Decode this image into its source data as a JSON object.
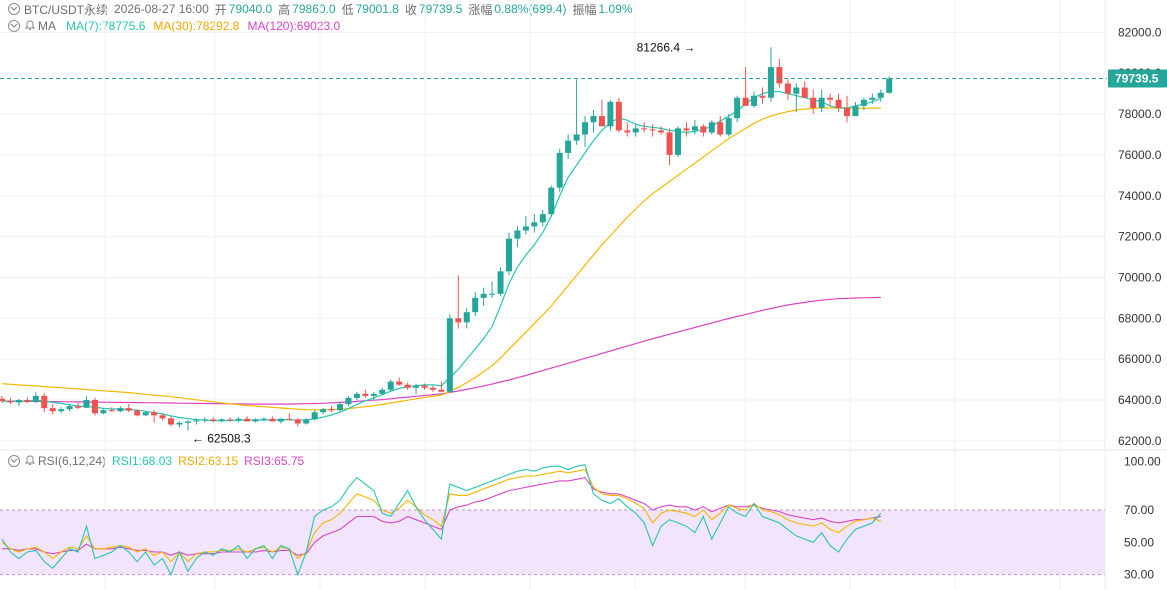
{
  "header": {
    "symbol": "BTC/USDT永续",
    "datetime": "2026-08-27 16:00",
    "open_label": "开",
    "open": "79040.0",
    "high_label": "高",
    "high": "79860.0",
    "low_label": "低",
    "low": "79001.8",
    "close_label": "收",
    "close": "79739.5",
    "change_label": "涨幅",
    "change": "0.88%(699.4)",
    "amp_label": "振幅",
    "amp": "1.09%"
  },
  "ma_header": {
    "label": "MA",
    "ma7": "MA(7):78775.6",
    "ma30": "MA(30):78292.8",
    "ma120": "MA(120):69023.0"
  },
  "rsi_header": {
    "label": "RSI(6,12,24)",
    "rsi1": "RSI1:68.03",
    "rsi2": "RSI2:63.15",
    "rsi3": "RSI3:65.75"
  },
  "colors": {
    "up": "#26a69a",
    "down": "#ef5350",
    "ma7": "#26c6b3",
    "ma30": "#f5b800",
    "ma120": "#d946c4",
    "rsi_band": "#f1e4fb",
    "price_line": "#26a69a"
  },
  "chart_data": {
    "type": "candlestick",
    "price_axis": {
      "ticks": [
        "82000.0",
        "80000.0",
        "78000.0",
        "76000.0",
        "74000.0",
        "72000.0",
        "70000.0",
        "68000.0",
        "66000.0",
        "64000.0",
        "62000.0"
      ],
      "tick_values": [
        82000,
        80000,
        78000,
        76000,
        74000,
        72000,
        70000,
        68000,
        66000,
        64000,
        62000
      ],
      "ylim": [
        61600,
        82900
      ]
    },
    "current_price": {
      "value": 79739.5,
      "label": "79739.5"
    },
    "annotations": [
      {
        "text": "81266.4",
        "value": 81266.4,
        "index": 83,
        "side": "left"
      },
      {
        "text": "62508.3",
        "value": 62508.3,
        "index": 22,
        "side": "right"
      }
    ],
    "candles": [
      [
        64060,
        64200,
        63850,
        63950
      ],
      [
        63950,
        64100,
        63800,
        63880
      ],
      [
        63880,
        64050,
        63700,
        64000
      ],
      [
        64000,
        64120,
        63850,
        63900
      ],
      [
        63900,
        64380,
        63850,
        64200
      ],
      [
        64200,
        64350,
        63400,
        63600
      ],
      [
        63600,
        63800,
        63300,
        63450
      ],
      [
        63450,
        63650,
        63350,
        63550
      ],
      [
        63550,
        63800,
        63450,
        63700
      ],
      [
        63700,
        63850,
        63550,
        63620
      ],
      [
        63620,
        64200,
        63600,
        64000
      ],
      [
        64000,
        64100,
        63250,
        63350
      ],
      [
        63350,
        63550,
        63300,
        63500
      ],
      [
        63500,
        63650,
        63400,
        63450
      ],
      [
        63450,
        63700,
        63400,
        63600
      ],
      [
        63600,
        63800,
        63400,
        63480
      ],
      [
        63480,
        63550,
        63200,
        63250
      ],
      [
        63250,
        63450,
        63200,
        63400
      ],
      [
        63400,
        63500,
        62900,
        63250
      ],
      [
        63250,
        63350,
        63000,
        63100
      ],
      [
        63100,
        63200,
        62700,
        62800
      ],
      [
        62800,
        62950,
        62650,
        62880
      ],
      [
        62880,
        63000,
        62508,
        62950
      ],
      [
        62950,
        63100,
        62800,
        63000
      ],
      [
        63000,
        63150,
        62900,
        63050
      ],
      [
        63050,
        63150,
        62900,
        62980
      ],
      [
        62980,
        63100,
        62900,
        63050
      ],
      [
        63050,
        63150,
        62950,
        63000
      ],
      [
        63000,
        63150,
        62900,
        63080
      ],
      [
        63080,
        63200,
        62950,
        62950
      ],
      [
        62950,
        63100,
        62900,
        63050
      ],
      [
        63050,
        63150,
        62950,
        63080
      ],
      [
        63080,
        63200,
        62950,
        62950
      ],
      [
        62950,
        63100,
        62850,
        63080
      ],
      [
        63080,
        63350,
        63000,
        63050
      ],
      [
        63050,
        63100,
        62700,
        62850
      ],
      [
        62850,
        63100,
        62800,
        63050
      ],
      [
        63050,
        63500,
        63000,
        63400
      ],
      [
        63400,
        63600,
        63300,
        63550
      ],
      [
        63550,
        63700,
        63400,
        63500
      ],
      [
        63500,
        63900,
        63450,
        63800
      ],
      [
        63800,
        64200,
        63700,
        64100
      ],
      [
        64100,
        64400,
        64000,
        64300
      ],
      [
        64300,
        64500,
        64100,
        64200
      ],
      [
        64200,
        64400,
        64000,
        64300
      ],
      [
        64300,
        64600,
        64250,
        64500
      ],
      [
        64500,
        65000,
        64400,
        64900
      ],
      [
        64900,
        65100,
        64700,
        64750
      ],
      [
        64750,
        64850,
        64500,
        64600
      ],
      [
        64600,
        64800,
        64300,
        64700
      ],
      [
        64700,
        64800,
        64500,
        64600
      ],
      [
        64600,
        64700,
        64400,
        64500
      ],
      [
        64500,
        64900,
        64400,
        64400
      ],
      [
        64400,
        68200,
        64400,
        68000
      ],
      [
        68000,
        70100,
        67500,
        67800
      ],
      [
        67800,
        68500,
        67500,
        68300
      ],
      [
        68300,
        69300,
        68100,
        69000
      ],
      [
        69000,
        69500,
        68600,
        69200
      ],
      [
        69200,
        69800,
        69000,
        69200
      ],
      [
        69200,
        70500,
        69100,
        70300
      ],
      [
        70300,
        72200,
        70100,
        71900
      ],
      [
        71900,
        72500,
        71500,
        72300
      ],
      [
        72300,
        73000,
        72100,
        72500
      ],
      [
        72500,
        73100,
        72200,
        72700
      ],
      [
        72700,
        73300,
        72500,
        73100
      ],
      [
        73100,
        74500,
        73000,
        74400
      ],
      [
        74400,
        76300,
        74200,
        76100
      ],
      [
        76100,
        77000,
        75800,
        76700
      ],
      [
        76700,
        79700,
        76500,
        77000
      ],
      [
        77000,
        77900,
        76400,
        77600
      ],
      [
        77600,
        78200,
        77100,
        77900
      ],
      [
        77900,
        78700,
        77500,
        77400
      ],
      [
        77400,
        78700,
        77200,
        78600
      ],
      [
        78600,
        78800,
        77100,
        77200
      ],
      [
        77200,
        77600,
        76900,
        77100
      ],
      [
        77100,
        77500,
        76900,
        77300
      ],
      [
        77300,
        77600,
        77100,
        77250
      ],
      [
        77250,
        77500,
        76900,
        77200
      ],
      [
        77200,
        77400,
        77000,
        77100
      ],
      [
        77100,
        77300,
        75500,
        76000
      ],
      [
        76000,
        77400,
        75900,
        77300
      ],
      [
        77300,
        77600,
        76900,
        77200
      ],
      [
        77200,
        77700,
        77000,
        77400
      ],
      [
        77400,
        77500,
        76900,
        77100
      ],
      [
        77100,
        77700,
        77000,
        77600
      ],
      [
        77600,
        77900,
        76900,
        77000
      ],
      [
        77000,
        78000,
        76900,
        77800
      ],
      [
        77800,
        78900,
        77600,
        78800
      ],
      [
        78800,
        80300,
        78500,
        78400
      ],
      [
        78400,
        79100,
        78300,
        78900
      ],
      [
        78900,
        79300,
        78500,
        78800
      ],
      [
        78800,
        81266,
        78600,
        80300
      ],
      [
        80300,
        80700,
        79300,
        79500
      ],
      [
        79500,
        79700,
        78700,
        79000
      ],
      [
        79000,
        79500,
        78100,
        79300
      ],
      [
        79300,
        79600,
        78800,
        78800
      ],
      [
        78800,
        79200,
        78000,
        78300
      ],
      [
        78300,
        79200,
        78100,
        78800
      ],
      [
        78800,
        79000,
        78400,
        78700
      ],
      [
        78700,
        79000,
        78100,
        78300
      ],
      [
        78300,
        78900,
        77600,
        77900
      ],
      [
        77900,
        78600,
        77900,
        78400
      ],
      [
        78400,
        78800,
        78200,
        78700
      ],
      [
        78700,
        79000,
        78500,
        78800
      ],
      [
        78800,
        79200,
        78600,
        79040
      ],
      [
        79040,
        79860,
        79002,
        79740
      ]
    ],
    "ma7": [
      63950,
      63930,
      63930,
      63950,
      63980,
      63950,
      63880,
      63830,
      63770,
      63700,
      63680,
      63650,
      63590,
      63560,
      63560,
      63540,
      63500,
      63450,
      63380,
      63320,
      63220,
      63140,
      63090,
      63040,
      63010,
      62990,
      62980,
      62990,
      63010,
      63010,
      63020,
      63030,
      63020,
      63040,
      63030,
      63010,
      63030,
      63080,
      63160,
      63260,
      63400,
      63580,
      63780,
      63960,
      64100,
      64260,
      64430,
      64560,
      64650,
      64700,
      64740,
      64740,
      64700,
      65100,
      65500,
      66000,
      66500,
      67000,
      67600,
      68600,
      69700,
      70500,
      71100,
      71600,
      72200,
      73000,
      74000,
      74900,
      75500,
      76100,
      76700,
      77200,
      77600,
      77800,
      77700,
      77500,
      77400,
      77350,
      77300,
      77200,
      77150,
      77100,
      77150,
      77250,
      77400,
      77650,
      77900,
      78150,
      78500,
      78800,
      79000,
      79100,
      79100,
      79000,
      78900,
      78800,
      78700,
      78600,
      78400,
      78300,
      78300,
      78400,
      78500,
      78600,
      78776
    ],
    "ma30": [
      64800,
      64770,
      64740,
      64710,
      64690,
      64660,
      64630,
      64600,
      64570,
      64540,
      64510,
      64480,
      64450,
      64420,
      64390,
      64360,
      64320,
      64280,
      64240,
      64200,
      64160,
      64110,
      64060,
      64010,
      63960,
      63910,
      63860,
      63810,
      63770,
      63730,
      63700,
      63670,
      63640,
      63610,
      63580,
      63550,
      63530,
      63520,
      63520,
      63530,
      63550,
      63580,
      63620,
      63670,
      63720,
      63780,
      63850,
      63920,
      63990,
      64060,
      64120,
      64180,
      64240,
      64420,
      64620,
      64850,
      65100,
      65380,
      65680,
      66050,
      66480,
      66900,
      67320,
      67740,
      68160,
      68600,
      69100,
      69600,
      70100,
      70600,
      71100,
      71600,
      72050,
      72500,
      72950,
      73350,
      73750,
      74100,
      74400,
      74700,
      75000,
      75300,
      75600,
      75900,
      76200,
      76500,
      76800,
      77050,
      77300,
      77550,
      77750,
      77900,
      78020,
      78120,
      78200,
      78250,
      78280,
      78300,
      78300,
      78290,
      78280,
      78280,
      78285,
      78290,
      78293
    ],
    "ma120": [
      63950,
      63945,
      63940,
      63935,
      63930,
      63925,
      63920,
      63915,
      63910,
      63905,
      63900,
      63895,
      63890,
      63885,
      63880,
      63875,
      63870,
      63865,
      63860,
      63855,
      63850,
      63845,
      63840,
      63835,
      63830,
      63825,
      63820,
      63815,
      63810,
      63805,
      63800,
      63800,
      63800,
      63800,
      63800,
      63810,
      63820,
      63830,
      63840,
      63860,
      63880,
      63900,
      63930,
      63960,
      63990,
      64020,
      64060,
      64100,
      64140,
      64180,
      64220,
      64260,
      64300,
      64370,
      64440,
      64520,
      64600,
      64690,
      64780,
      64880,
      64980,
      65090,
      65200,
      65320,
      65440,
      65560,
      65680,
      65800,
      65920,
      66040,
      66160,
      66280,
      66400,
      66520,
      66640,
      66760,
      66880,
      67000,
      67110,
      67220,
      67330,
      67440,
      67550,
      67660,
      67770,
      67880,
      67990,
      68090,
      68190,
      68290,
      68390,
      68480,
      68570,
      68650,
      68720,
      68780,
      68840,
      68890,
      68930,
      68960,
      68980,
      68995,
      69005,
      69015,
      69023
    ],
    "rsi": {
      "axis_ticks": [
        "100.00",
        "70.00",
        "50.00",
        "30.00"
      ],
      "axis_values": [
        100,
        70,
        50,
        30
      ],
      "ylim": [
        23,
        104
      ],
      "band": [
        30,
        70
      ],
      "rsi1": [
        52,
        44,
        40,
        44,
        45,
        38,
        34,
        40,
        46,
        44,
        60,
        40,
        42,
        44,
        48,
        44,
        38,
        44,
        36,
        40,
        30,
        44,
        32,
        40,
        44,
        42,
        46,
        44,
        48,
        40,
        46,
        48,
        40,
        48,
        46,
        30,
        44,
        66,
        70,
        72,
        76,
        84,
        90,
        86,
        82,
        68,
        66,
        74,
        82,
        72,
        64,
        58,
        52,
        86,
        84,
        82,
        84,
        86,
        88,
        90,
        92,
        94,
        95,
        94,
        96,
        97,
        97,
        95,
        97,
        98,
        80,
        76,
        74,
        77,
        72,
        68,
        62,
        48,
        60,
        64,
        62,
        60,
        56,
        66,
        52,
        62,
        72,
        68,
        66,
        74,
        66,
        64,
        62,
        58,
        54,
        52,
        50,
        56,
        48,
        44,
        52,
        58,
        60,
        62,
        68
      ],
      "rsi2": [
        50,
        46,
        44,
        46,
        47,
        44,
        40,
        44,
        47,
        46,
        54,
        46,
        46,
        47,
        48,
        47,
        44,
        46,
        42,
        44,
        38,
        44,
        38,
        43,
        44,
        44,
        45,
        45,
        46,
        44,
        46,
        47,
        44,
        47,
        46,
        40,
        44,
        56,
        62,
        64,
        68,
        74,
        80,
        78,
        76,
        70,
        68,
        71,
        76,
        72,
        67,
        64,
        60,
        80,
        79,
        79,
        81,
        83,
        85,
        87,
        89,
        90,
        91,
        91,
        92,
        93,
        94,
        93,
        94,
        95,
        84,
        80,
        79,
        79,
        77,
        74,
        71,
        62,
        68,
        70,
        69,
        68,
        66,
        70,
        64,
        68,
        73,
        71,
        70,
        74,
        70,
        69,
        67,
        64,
        62,
        61,
        60,
        62,
        58,
        56,
        60,
        63,
        64,
        65,
        63
      ],
      "rsi3": [
        46,
        46,
        45,
        46,
        46,
        44,
        43,
        44,
        45,
        45,
        49,
        46,
        46,
        46,
        47,
        46,
        45,
        45,
        44,
        44,
        42,
        44,
        42,
        43,
        43,
        43,
        44,
        44,
        44,
        44,
        44,
        45,
        44,
        45,
        45,
        42,
        43,
        50,
        54,
        56,
        58,
        62,
        66,
        66,
        66,
        63,
        62,
        63,
        66,
        64,
        62,
        60,
        58,
        70,
        72,
        73,
        75,
        76,
        78,
        80,
        82,
        83,
        84,
        85,
        86,
        87,
        88,
        88,
        89,
        90,
        83,
        81,
        80,
        80,
        78,
        76,
        74,
        70,
        72,
        73,
        72,
        72,
        70,
        72,
        69,
        71,
        73,
        72,
        72,
        73,
        71,
        70,
        69,
        67,
        66,
        65,
        64,
        65,
        63,
        62,
        63,
        64,
        64,
        65,
        66
      ]
    }
  }
}
